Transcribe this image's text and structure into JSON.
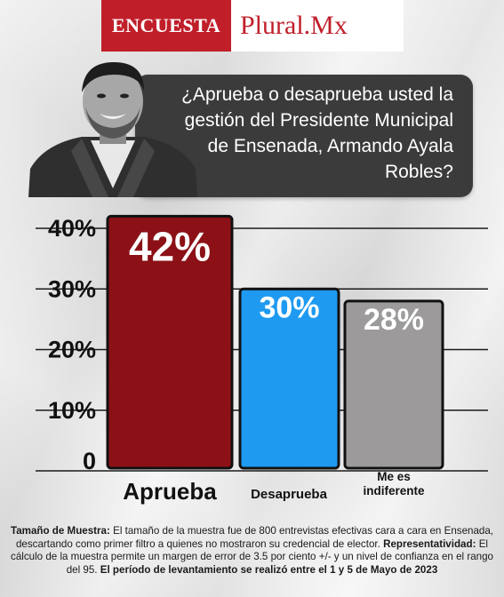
{
  "brand": {
    "tag": "ENCUESTA",
    "name": "Plural.Mx"
  },
  "question": "¿Aprueba o desaprueba usted la gestión del Presidente Municipal de Ensenada, Armando Ayala Robles?",
  "chart_data": {
    "type": "bar",
    "categories": [
      "Aprueba",
      "Desaprueba",
      "Me es indiferente"
    ],
    "values": [
      42,
      30,
      28
    ],
    "value_labels": [
      "42%",
      "30%",
      "28%"
    ],
    "colors": [
      "#8b1116",
      "#1f9af1",
      "#9c9a9b"
    ],
    "y_ticks": [
      {
        "value": 0,
        "label": "0"
      },
      {
        "value": 10,
        "label": "10%"
      },
      {
        "value": 20,
        "label": "20%"
      },
      {
        "value": 30,
        "label": "30%"
      },
      {
        "value": 40,
        "label": "40%"
      }
    ],
    "ylim": [
      0,
      42
    ],
    "grid": true,
    "title": "",
    "xlabel": "",
    "ylabel": ""
  },
  "footer": {
    "sample_label": "Tamaño de Muestra:",
    "sample_text": "El tamaño de la muestra fue de 800 entrevistas efectivas cara a cara en Ensenada, descartando como primer filtro a quienes no mostraron su credencial de elector.",
    "rep_label": "Representatividad:",
    "rep_text": "El cálculo de la muestra permite un margen de error de 3.5 por ciento +/- y un nivel de confianza en el rango del 95.",
    "period_text": "El período de levantamiento se realizó entre el 1 y 5 de Mayo de 2023"
  }
}
